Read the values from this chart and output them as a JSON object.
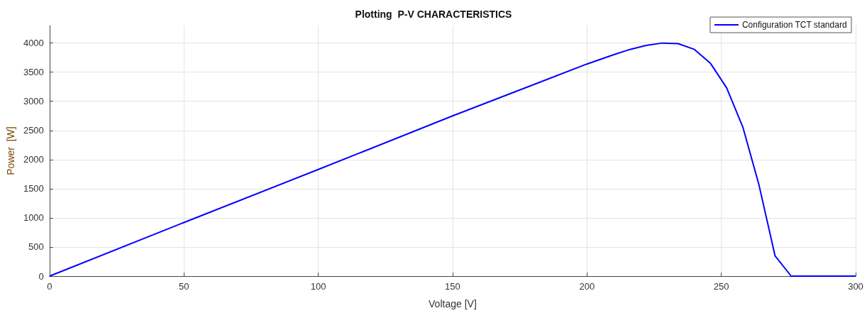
{
  "chart_data": {
    "type": "line",
    "title": "Plotting  P-V CHARACTERISTICS",
    "xlabel": "Voltage [V]",
    "ylabel": "Power  [W]",
    "series": [
      {
        "name": "Configuration TCT standard",
        "color": "#0000ff",
        "x": [
          0,
          50,
          100,
          150,
          200,
          210,
          216,
          222,
          228,
          234,
          240,
          246,
          252,
          258,
          264,
          270,
          276,
          300
        ],
        "values": [
          0,
          920,
          1830,
          2750,
          3640,
          3800,
          3890,
          3960,
          4000,
          3990,
          3890,
          3650,
          3230,
          2560,
          1570,
          350,
          0,
          0
        ]
      }
    ],
    "xlim": [
      0,
      300
    ],
    "xticks": [
      0,
      50,
      100,
      150,
      200,
      250,
      300
    ],
    "ylim": [
      0,
      4300
    ],
    "yticks": [
      0,
      500,
      1000,
      1500,
      2000,
      2500,
      3000,
      3500,
      4000
    ],
    "grid": true,
    "legend": "top right",
    "marker": "none",
    "line_style": "solid"
  }
}
